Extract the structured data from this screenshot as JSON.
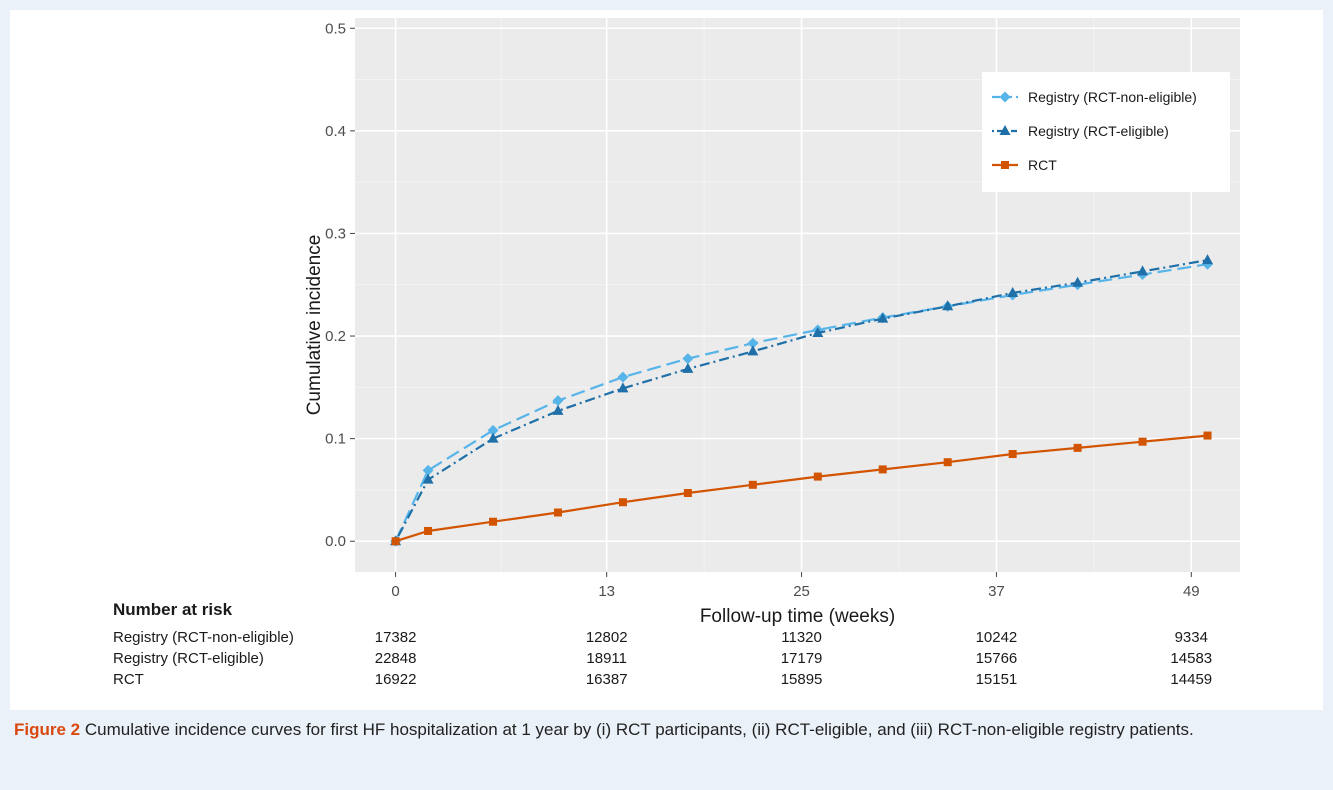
{
  "caption": {
    "label": "Figure 2",
    "text": "Cumulative incidence curves for first HF hospitalization at 1 year by (i) RCT participants, (ii) RCT-eligible, and (iii) RCT-non-eligible registry patients."
  },
  "chart_data": {
    "type": "line",
    "title": "",
    "xlabel": "Follow-up time (weeks)",
    "ylabel": "Cumulative incidence",
    "xlim": [
      -2.5,
      52
    ],
    "ylim": [
      -0.03,
      0.51
    ],
    "x_ticks": [
      0,
      13,
      25,
      37,
      49
    ],
    "x_tick_labels": [
      "0",
      "13",
      "25",
      "37",
      "49"
    ],
    "y_ticks": [
      0.0,
      0.1,
      0.2,
      0.3,
      0.4,
      0.5
    ],
    "y_tick_labels": [
      "0.0",
      "0.1",
      "0.2",
      "0.3",
      "0.4",
      "0.5"
    ],
    "grid": true,
    "legend_position": "top-right",
    "series": [
      {
        "name": "Registry (RCT-non-eligible)",
        "color": "#56b4e9",
        "marker": "diamond",
        "dash": "long-dash",
        "x": [
          0,
          2,
          6,
          10,
          14,
          18,
          22,
          26,
          30,
          34,
          38,
          42,
          46,
          50
        ],
        "y": [
          0.0,
          0.069,
          0.108,
          0.137,
          0.16,
          0.178,
          0.193,
          0.206,
          0.218,
          0.229,
          0.24,
          0.25,
          0.26,
          0.27
        ]
      },
      {
        "name": "Registry (RCT-eligible)",
        "color": "#1f6fa8",
        "marker": "triangle",
        "dash": "dot-dash",
        "x": [
          0,
          2,
          6,
          10,
          14,
          18,
          22,
          26,
          30,
          34,
          38,
          42,
          46,
          50
        ],
        "y": [
          0.0,
          0.06,
          0.1,
          0.127,
          0.149,
          0.168,
          0.185,
          0.203,
          0.217,
          0.229,
          0.242,
          0.252,
          0.263,
          0.274
        ]
      },
      {
        "name": "RCT",
        "color": "#d35400",
        "marker": "square",
        "dash": "solid",
        "x": [
          0,
          2,
          6,
          10,
          14,
          18,
          22,
          26,
          30,
          34,
          38,
          42,
          46,
          50
        ],
        "y": [
          0.0,
          0.01,
          0.019,
          0.028,
          0.038,
          0.047,
          0.055,
          0.063,
          0.07,
          0.077,
          0.085,
          0.091,
          0.097,
          0.103
        ]
      }
    ],
    "risk_table": {
      "title": "Number at risk",
      "x": [
        0,
        13,
        25,
        37,
        49
      ],
      "rows": [
        {
          "label": "Registry (RCT-non-eligible)",
          "values": [
            "17382",
            "12802",
            "11320",
            "10242",
            "9334"
          ]
        },
        {
          "label": "Registry (RCT-eligible)",
          "values": [
            "22848",
            "18911",
            "17179",
            "15766",
            "14583"
          ]
        },
        {
          "label": "RCT",
          "values": [
            "16922",
            "16387",
            "15895",
            "15151",
            "14459"
          ]
        }
      ]
    }
  }
}
